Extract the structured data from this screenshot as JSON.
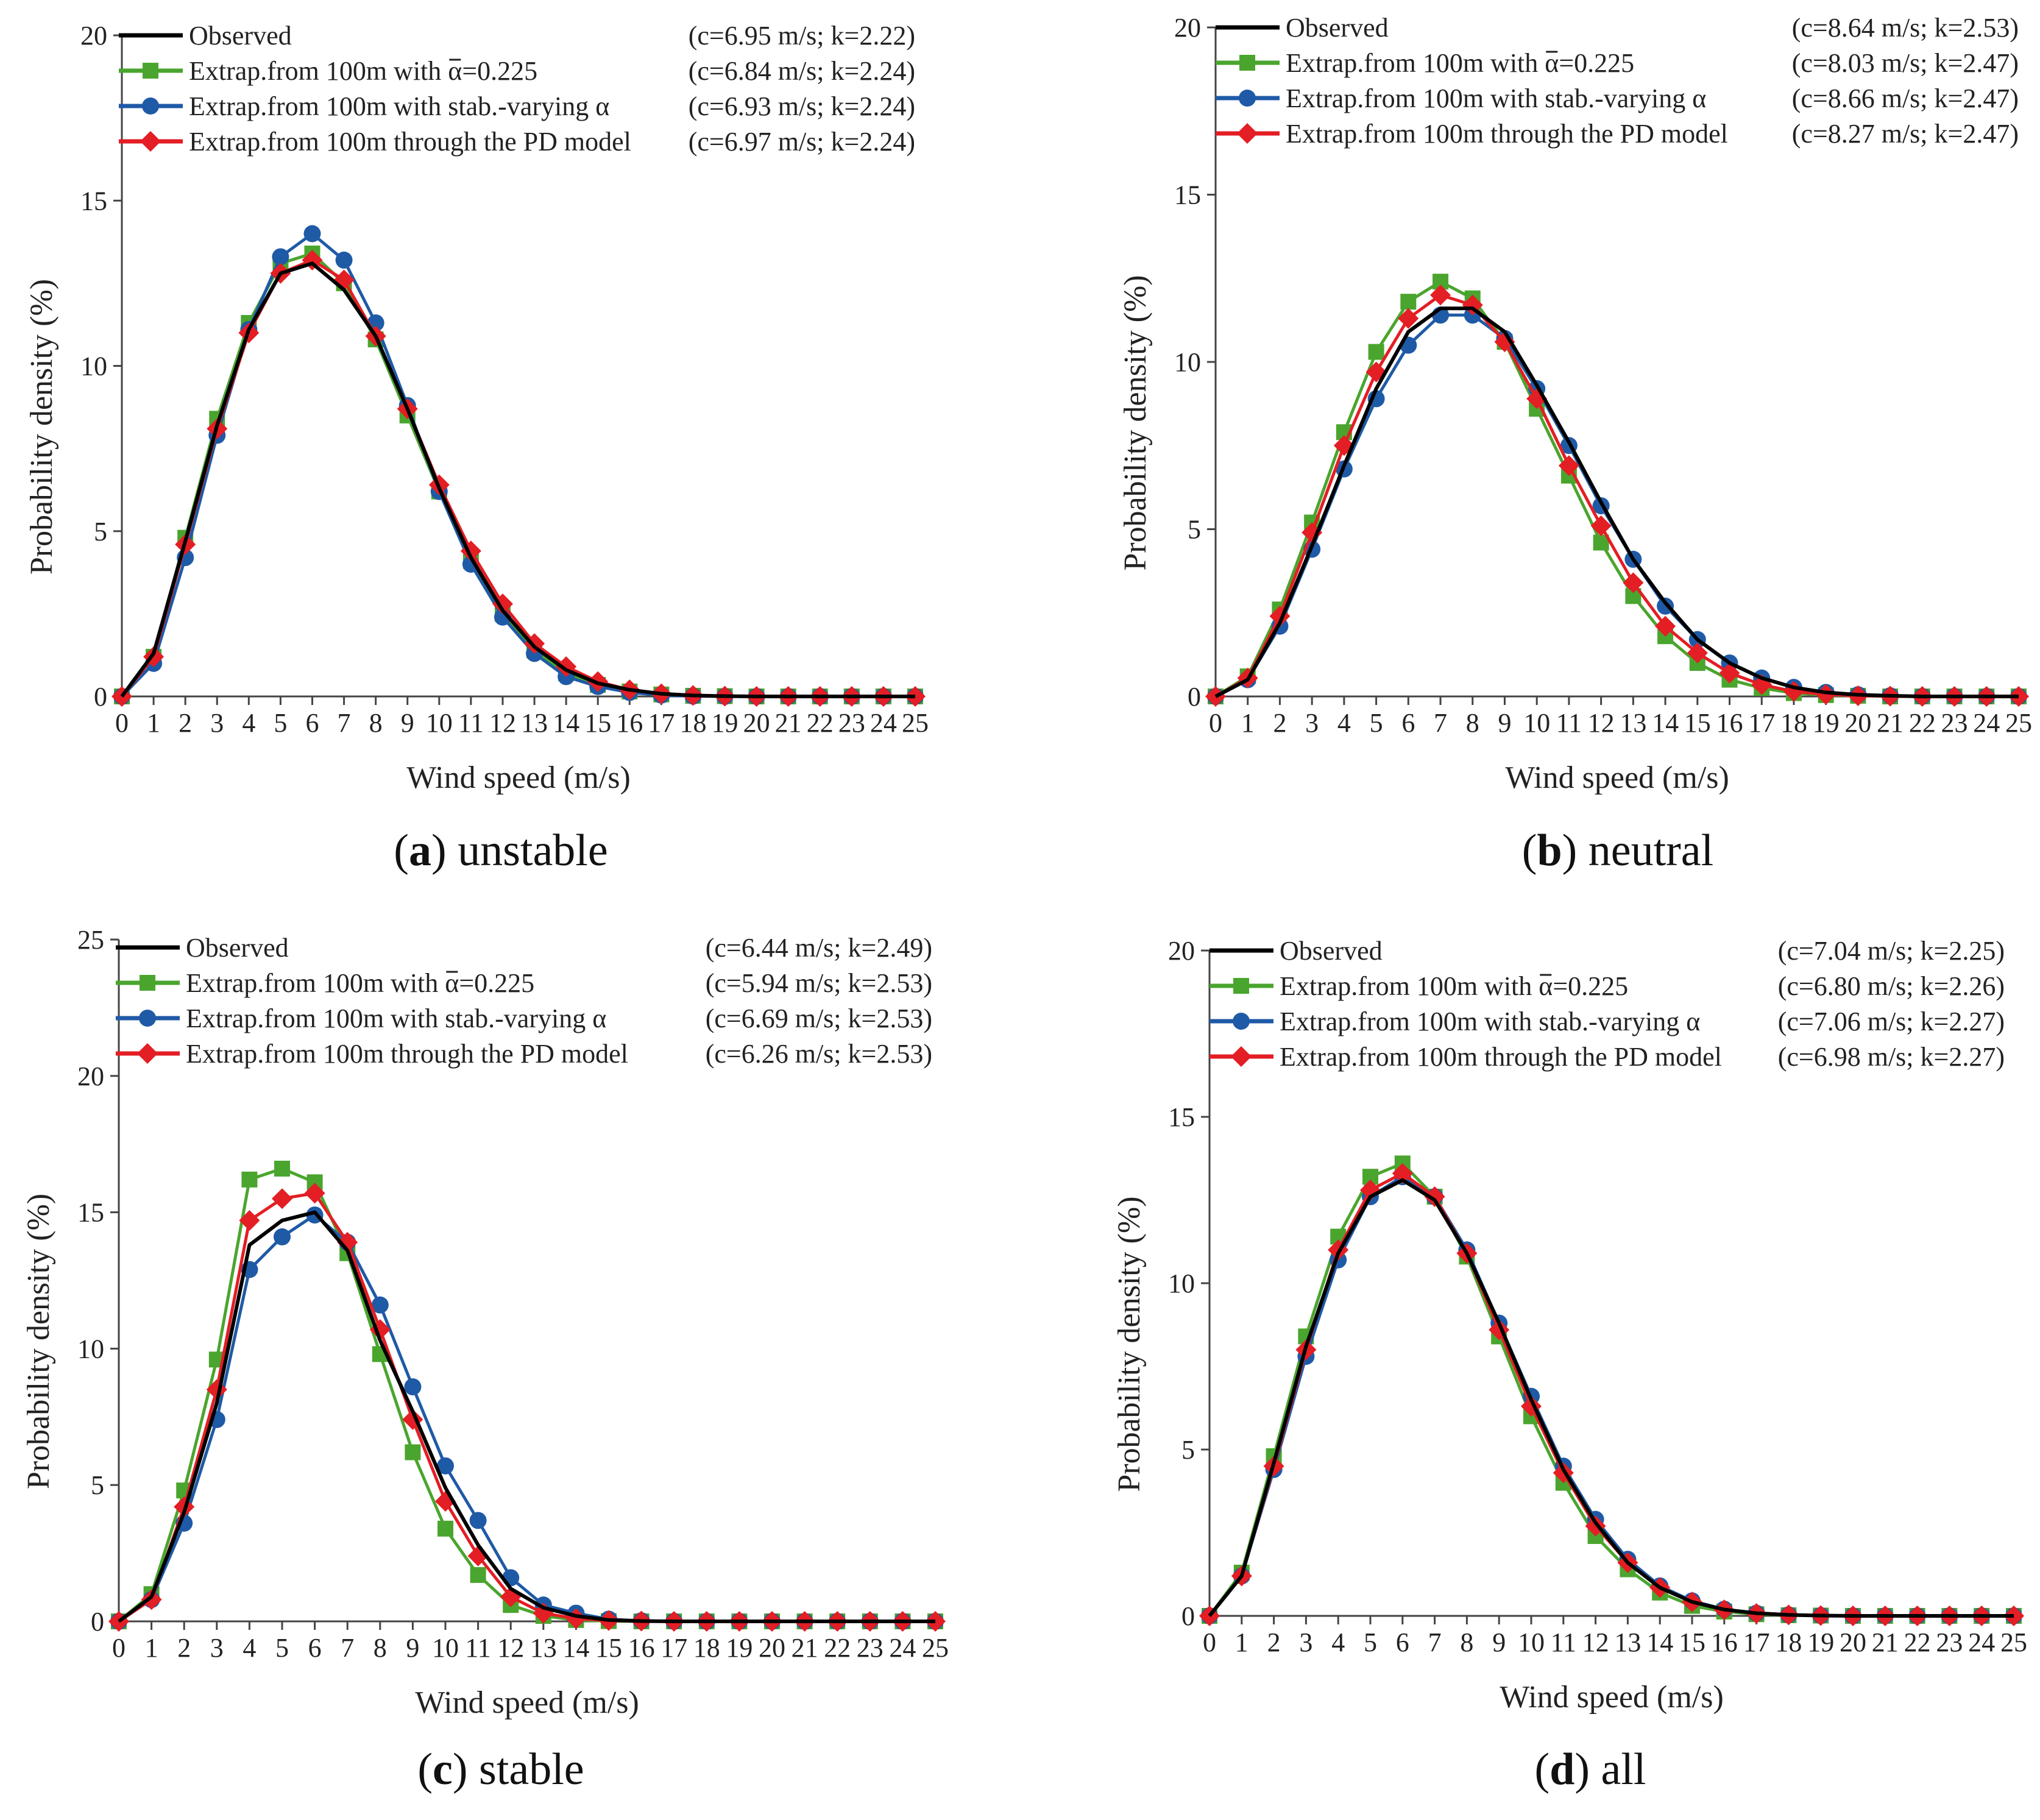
{
  "chart_data": [
    {
      "type": "line",
      "caption_letter": "a",
      "caption_text": "unstable",
      "xlabel": "Wind speed (m/s)",
      "ylabel": "Probability density (%)",
      "xlim": [
        0,
        25
      ],
      "ylim": [
        0,
        20
      ],
      "yticks": [
        0,
        5,
        10,
        15,
        20
      ],
      "x": [
        0,
        1,
        2,
        3,
        4,
        5,
        6,
        7,
        8,
        9,
        10,
        11,
        12,
        13,
        14,
        15,
        16,
        17,
        18,
        19,
        20,
        21,
        22,
        23,
        24,
        25
      ],
      "legend_position": "top-left",
      "series": [
        {
          "name": "Observed",
          "params": "(c=6.95 m/s; k=2.22)",
          "color": "#000000",
          "marker": "none",
          "values": [
            0,
            1.3,
            4.7,
            8.2,
            11.1,
            12.8,
            13.1,
            12.3,
            10.9,
            8.7,
            6.3,
            4.2,
            2.6,
            1.5,
            0.8,
            0.4,
            0.2,
            0.08,
            0.03,
            0.01,
            0,
            0,
            0,
            0,
            0,
            0
          ]
        },
        {
          "name": "Extrap.from 100m with α=0.225",
          "params": "(c=6.84 m/s; k=2.24)",
          "color": "#4aa52e",
          "marker": "square",
          "values": [
            0,
            1.2,
            4.8,
            8.4,
            11.3,
            13.1,
            13.4,
            12.5,
            10.8,
            8.5,
            6.2,
            4.1,
            2.5,
            1.4,
            0.7,
            0.35,
            0.15,
            0.06,
            0.02,
            0.01,
            0,
            0,
            0,
            0,
            0,
            0
          ]
        },
        {
          "name": "Extrap.from 100m with stab.-varying α",
          "params": "(c=6.93 m/s; k=2.24)",
          "color": "#1f5aa6",
          "marker": "circle",
          "values": [
            0,
            1.0,
            4.2,
            7.9,
            11.1,
            13.3,
            14.0,
            13.2,
            11.3,
            8.8,
            6.2,
            4.0,
            2.4,
            1.3,
            0.6,
            0.3,
            0.12,
            0.04,
            0.01,
            0,
            0,
            0,
            0,
            0,
            0,
            0
          ]
        },
        {
          "name": "Extrap.from 100m through the PD model",
          "params": "(c=6.97 m/s; k=2.24)",
          "color": "#e31e24",
          "marker": "diamond",
          "values": [
            0,
            1.2,
            4.6,
            8.1,
            11.0,
            12.8,
            13.2,
            12.6,
            10.9,
            8.7,
            6.4,
            4.4,
            2.8,
            1.6,
            0.9,
            0.45,
            0.2,
            0.08,
            0.03,
            0.01,
            0,
            0,
            0,
            0,
            0,
            0
          ]
        }
      ]
    },
    {
      "type": "line",
      "caption_letter": "b",
      "caption_text": "neutral",
      "xlabel": "Wind speed (m/s)",
      "ylabel": "Probability density (%)",
      "xlim": [
        0,
        25
      ],
      "ylim": [
        0,
        20
      ],
      "yticks": [
        0,
        5,
        10,
        15,
        20
      ],
      "x": [
        0,
        1,
        2,
        3,
        4,
        5,
        6,
        7,
        8,
        9,
        10,
        11,
        12,
        13,
        14,
        15,
        16,
        17,
        18,
        19,
        20,
        21,
        22,
        23,
        24,
        25
      ],
      "legend_position": "top-left",
      "series": [
        {
          "name": "Observed",
          "params": "(c=8.64 m/s; k=2.53)",
          "color": "#000000",
          "marker": "none",
          "values": [
            0,
            0.5,
            2.2,
            4.5,
            6.9,
            9.2,
            10.9,
            11.6,
            11.6,
            10.9,
            9.3,
            7.6,
            5.8,
            4.1,
            2.8,
            1.7,
            1.0,
            0.55,
            0.27,
            0.12,
            0.05,
            0.02,
            0,
            0,
            0,
            0
          ]
        },
        {
          "name": "Extrap.from 100m with α=0.225",
          "params": "(c=8.03 m/s; k=2.47)",
          "color": "#4aa52e",
          "marker": "square",
          "values": [
            0,
            0.6,
            2.6,
            5.2,
            7.9,
            10.3,
            11.8,
            12.4,
            11.9,
            10.6,
            8.6,
            6.6,
            4.6,
            3.0,
            1.8,
            1.0,
            0.5,
            0.25,
            0.1,
            0.04,
            0.02,
            0,
            0,
            0,
            0,
            0
          ]
        },
        {
          "name": "Extrap.from 100m with stab.-varying α",
          "params": "(c=8.66 m/s; k=2.47)",
          "color": "#1f5aa6",
          "marker": "circle",
          "values": [
            0,
            0.5,
            2.1,
            4.4,
            6.8,
            8.9,
            10.5,
            11.4,
            11.4,
            10.7,
            9.2,
            7.5,
            5.7,
            4.1,
            2.7,
            1.7,
            1.0,
            0.55,
            0.27,
            0.12,
            0.05,
            0.02,
            0,
            0,
            0,
            0
          ]
        },
        {
          "name": "Extrap.from 100m through the PD model",
          "params": "(c=8.27 m/s; k=2.47)",
          "color": "#e31e24",
          "marker": "diamond",
          "values": [
            0,
            0.55,
            2.4,
            4.9,
            7.5,
            9.7,
            11.3,
            12.0,
            11.7,
            10.6,
            8.9,
            6.9,
            5.1,
            3.4,
            2.1,
            1.3,
            0.7,
            0.35,
            0.15,
            0.06,
            0.02,
            0.01,
            0,
            0,
            0,
            0
          ]
        }
      ]
    },
    {
      "type": "line",
      "caption_letter": "c",
      "caption_text": "stable",
      "xlabel": "Wind speed (m/s)",
      "ylabel": "Probability density (%)",
      "xlim": [
        0,
        25
      ],
      "ylim": [
        0,
        25
      ],
      "yticks": [
        0,
        5,
        10,
        15,
        20,
        25
      ],
      "x": [
        0,
        1,
        2,
        3,
        4,
        5,
        6,
        7,
        8,
        9,
        10,
        11,
        12,
        13,
        14,
        15,
        16,
        17,
        18,
        19,
        20,
        21,
        22,
        23,
        24,
        25
      ],
      "legend_position": "top-left",
      "series": [
        {
          "name": "Observed",
          "params": "(c=6.44 m/s; k=2.49)",
          "color": "#000000",
          "marker": "none",
          "values": [
            0,
            0.9,
            4.0,
            8.0,
            13.8,
            14.7,
            15.0,
            13.6,
            10.3,
            7.7,
            4.9,
            2.8,
            1.2,
            0.5,
            0.2,
            0.05,
            0.01,
            0,
            0,
            0,
            0,
            0,
            0,
            0,
            0,
            0
          ]
        },
        {
          "name": "Extrap.from 100m with α=0.225",
          "params": "(c=5.94 m/s; k=2.53)",
          "color": "#4aa52e",
          "marker": "square",
          "values": [
            0,
            1.0,
            4.8,
            9.6,
            16.2,
            16.6,
            16.1,
            13.5,
            9.8,
            6.2,
            3.4,
            1.7,
            0.6,
            0.2,
            0.05,
            0.01,
            0,
            0,
            0,
            0,
            0,
            0,
            0,
            0,
            0,
            0
          ]
        },
        {
          "name": "Extrap.from 100m with stab.-varying α",
          "params": "(c=6.69 m/s; k=2.53)",
          "color": "#1f5aa6",
          "marker": "circle",
          "values": [
            0,
            0.8,
            3.6,
            7.4,
            12.9,
            14.1,
            14.9,
            13.9,
            11.6,
            8.6,
            5.7,
            3.7,
            1.6,
            0.6,
            0.3,
            0.08,
            0.02,
            0,
            0,
            0,
            0,
            0,
            0,
            0,
            0,
            0
          ]
        },
        {
          "name": "Extrap.from 100m through the PD model",
          "params": "(c=6.26 m/s; k=2.53)",
          "color": "#e31e24",
          "marker": "diamond",
          "values": [
            0,
            0.8,
            4.2,
            8.5,
            14.7,
            15.5,
            15.7,
            13.9,
            10.7,
            7.4,
            4.4,
            2.4,
            0.9,
            0.3,
            0.1,
            0.03,
            0.01,
            0,
            0,
            0,
            0,
            0,
            0,
            0,
            0,
            0
          ]
        }
      ]
    },
    {
      "type": "line",
      "caption_letter": "d",
      "caption_text": "all",
      "xlabel": "Wind speed (m/s)",
      "ylabel": "Probability density (%)",
      "xlim": [
        0,
        25
      ],
      "ylim": [
        0,
        20
      ],
      "yticks": [
        0,
        5,
        10,
        15,
        20
      ],
      "x": [
        0,
        1,
        2,
        3,
        4,
        5,
        6,
        7,
        8,
        9,
        10,
        11,
        12,
        13,
        14,
        15,
        16,
        17,
        18,
        19,
        20,
        21,
        22,
        23,
        24,
        25
      ],
      "legend_position": "top-left",
      "series": [
        {
          "name": "Observed",
          "params": "(c=7.04 m/s; k=2.25)",
          "color": "#000000",
          "marker": "none",
          "values": [
            0,
            1.2,
            4.6,
            8.1,
            10.9,
            12.6,
            13.1,
            12.5,
            10.9,
            8.8,
            6.5,
            4.4,
            2.8,
            1.6,
            0.85,
            0.42,
            0.19,
            0.08,
            0.03,
            0.01,
            0,
            0,
            0,
            0,
            0,
            0
          ]
        },
        {
          "name": "Extrap.from 100m with α=0.225",
          "params": "(c=6.80 m/s; k=2.26)",
          "color": "#4aa52e",
          "marker": "square",
          "values": [
            0,
            1.3,
            4.8,
            8.4,
            11.4,
            13.2,
            13.6,
            12.6,
            10.8,
            8.4,
            6.0,
            4.0,
            2.4,
            1.4,
            0.7,
            0.3,
            0.13,
            0.05,
            0.02,
            0.01,
            0,
            0,
            0,
            0,
            0,
            0
          ]
        },
        {
          "name": "Extrap.from 100m with stab.-varying α",
          "params": "(c=7.06 m/s; k=2.27)",
          "color": "#1f5aa6",
          "marker": "circle",
          "values": [
            0,
            1.2,
            4.4,
            7.8,
            10.7,
            12.6,
            13.2,
            12.6,
            11.0,
            8.8,
            6.6,
            4.5,
            2.9,
            1.7,
            0.9,
            0.45,
            0.2,
            0.08,
            0.03,
            0.01,
            0,
            0,
            0,
            0,
            0,
            0
          ]
        },
        {
          "name": "Extrap.from 100m through the PD model",
          "params": "(c=6.98 m/s; k=2.27)",
          "color": "#e31e24",
          "marker": "diamond",
          "values": [
            0,
            1.2,
            4.5,
            8.0,
            11.0,
            12.8,
            13.3,
            12.6,
            10.9,
            8.6,
            6.3,
            4.3,
            2.7,
            1.6,
            0.85,
            0.42,
            0.18,
            0.07,
            0.03,
            0.01,
            0,
            0,
            0,
            0,
            0,
            0
          ]
        }
      ]
    }
  ]
}
